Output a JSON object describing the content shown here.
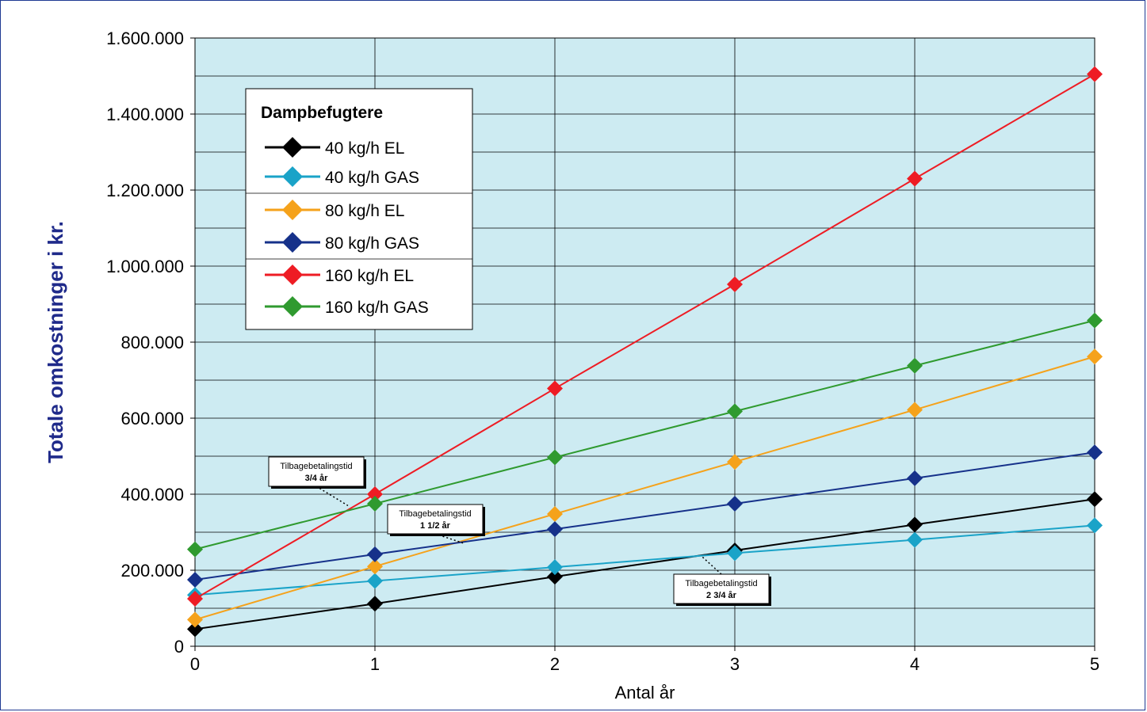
{
  "chart_data": {
    "type": "line",
    "xlabel": "Antal år",
    "ylabel": "Totale omkostninger i kr.",
    "x": [
      0,
      1,
      2,
      3,
      4,
      5
    ],
    "x_tick_labels": [
      "0",
      "1",
      "2",
      "3",
      "4",
      "5"
    ],
    "ylim": [
      0,
      1600000
    ],
    "y_tick_labels": [
      "0",
      "200.000",
      "400.000",
      "600.000",
      "800.000",
      "1.000.000",
      "1.200.000",
      "1.400.000",
      "1.600.000"
    ],
    "y_ticks": [
      0,
      200000,
      400000,
      600000,
      800000,
      1000000,
      1200000,
      1400000,
      1600000
    ],
    "grid": true,
    "background_color": "#cdebf2",
    "legend": {
      "title": "Dampbefugtere",
      "position": "top-left"
    },
    "series": [
      {
        "name": "40 kg/h EL",
        "color": "#000000",
        "values": [
          45000,
          112000,
          183000,
          252000,
          320000,
          387000
        ]
      },
      {
        "name": "40 kg/h GAS",
        "color": "#1aa3c8",
        "values": [
          135000,
          172000,
          208000,
          245000,
          280000,
          318000
        ]
      },
      {
        "name": "80 kg/h EL",
        "color": "#f5a21b",
        "values": [
          70000,
          210000,
          348000,
          485000,
          622000,
          762000
        ]
      },
      {
        "name": "80 kg/h GAS",
        "color": "#16318a",
        "values": [
          175000,
          242000,
          308000,
          375000,
          442000,
          510000
        ]
      },
      {
        "name": "160 kg/h EL",
        "color": "#ee1c24",
        "values": [
          125000,
          400000,
          678000,
          952000,
          1230000,
          1505000
        ]
      },
      {
        "name": "160 kg/h GAS",
        "color": "#2f9a2f",
        "values": [
          255000,
          375000,
          497000,
          618000,
          738000,
          857000
        ]
      }
    ],
    "annotations": [
      {
        "label": "Tilbagebetalingstid",
        "value": "3/4 år",
        "x": 0.85,
        "y": 370000
      },
      {
        "label": "Tilbagebetalingstid",
        "value": "1 1/2 år",
        "x": 1.5,
        "y": 270000
      },
      {
        "label": "Tilbagebetalingstid",
        "value": "2 3/4 år",
        "x": 2.82,
        "y": 235000
      }
    ]
  }
}
